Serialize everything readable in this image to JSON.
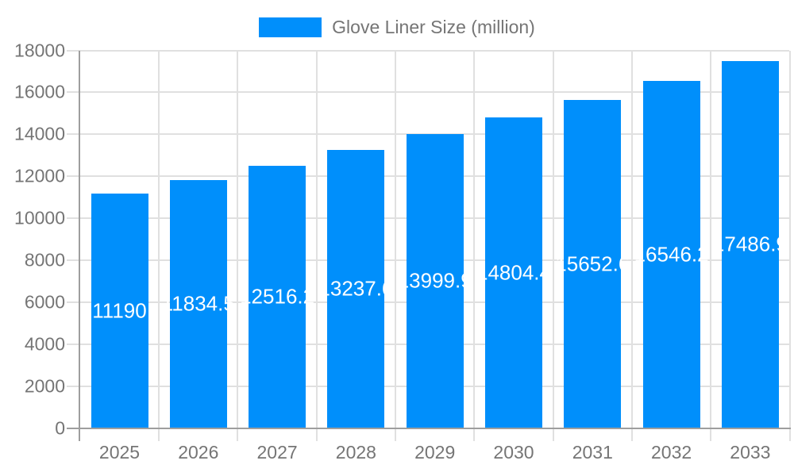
{
  "legend": {
    "label": "Glove Liner Size (million)"
  },
  "colors": {
    "bar": "#008FFB",
    "grid": "#e0e0e0",
    "axis": "#9e9e9e",
    "tick_text": "#757575",
    "bar_label_text": "#ffffff",
    "background": "#ffffff"
  },
  "chart_data": {
    "type": "bar",
    "title": "Glove Liner Size (million)",
    "categories": [
      "2025",
      "2026",
      "2027",
      "2028",
      "2029",
      "2030",
      "2031",
      "2032",
      "2033"
    ],
    "series": [
      {
        "name": "Glove Liner Size (million)",
        "values": [
          11190,
          11834.5,
          12516.2,
          13237.6,
          13999.9,
          14804.4,
          15652.6,
          16546.2,
          17486.9
        ]
      }
    ],
    "bar_labels": [
      "11190",
      "11834.5",
      "12516.2",
      "13237.6",
      "13999.9",
      "14804.4",
      "15652.6",
      "16546.2",
      "17486.9"
    ],
    "xlabel": "",
    "ylabel": "",
    "ylim": [
      0,
      18000
    ],
    "ytick_step": 2000,
    "ytick_labels": [
      "0",
      "2000",
      "4000",
      "6000",
      "8000",
      "10000",
      "12000",
      "14000",
      "16000",
      "18000"
    ],
    "grid": true,
    "legend_position": "top",
    "bar_label_position": "inside-center"
  }
}
